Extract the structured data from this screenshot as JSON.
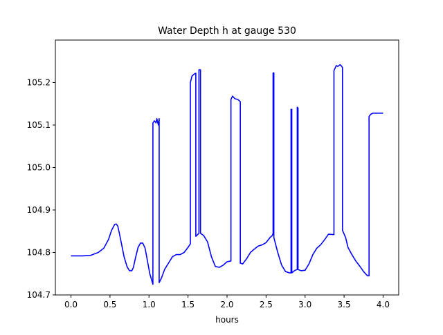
{
  "chart_data": {
    "type": "line",
    "title": "Water Depth h at gauge 530",
    "xlabel": "hours",
    "ylabel": "",
    "xlim": [
      -0.2,
      4.2
    ],
    "ylim": [
      104.7,
      105.3
    ],
    "xticks": [
      0.0,
      0.5,
      1.0,
      1.5,
      2.0,
      2.5,
      3.0,
      3.5,
      4.0
    ],
    "xtick_labels": [
      "0.0",
      "0.5",
      "1.0",
      "1.5",
      "2.0",
      "2.5",
      "3.0",
      "3.5",
      "4.0"
    ],
    "yticks": [
      104.7,
      104.8,
      104.9,
      105.0,
      105.1,
      105.2
    ],
    "ytick_labels": [
      "104.7",
      "104.8",
      "104.9",
      "105.0",
      "105.1",
      "105.2"
    ],
    "grid": false,
    "series": [
      {
        "color": "#0000ff",
        "x": [
          0.0,
          0.15,
          0.25,
          0.35,
          0.42,
          0.48,
          0.52,
          0.56,
          0.58,
          0.6,
          0.62,
          0.65,
          0.68,
          0.72,
          0.75,
          0.78,
          0.8,
          0.83,
          0.86,
          0.89,
          0.92,
          0.95,
          0.98,
          1.01,
          1.05,
          1.05,
          1.07,
          1.09,
          1.1,
          1.12,
          1.13,
          1.13,
          1.13,
          1.16,
          1.2,
          1.25,
          1.3,
          1.35,
          1.4,
          1.45,
          1.5,
          1.53,
          1.53,
          1.55,
          1.58,
          1.6,
          1.6,
          1.6,
          1.64,
          1.64,
          1.66,
          1.66,
          1.7,
          1.75,
          1.8,
          1.85,
          1.9,
          1.95,
          2.0,
          2.05,
          2.05,
          2.07,
          2.1,
          2.14,
          2.17,
          2.17,
          2.17,
          2.2,
          2.25,
          2.3,
          2.35,
          2.4,
          2.45,
          2.5,
          2.55,
          2.58,
          2.59,
          2.59,
          2.6,
          2.6,
          2.6,
          2.65,
          2.7,
          2.75,
          2.8,
          2.82,
          2.82,
          2.83,
          2.83,
          2.87,
          2.9,
          2.9,
          2.91,
          2.91,
          2.95,
          3.0,
          3.05,
          3.1,
          3.15,
          3.2,
          3.25,
          3.3,
          3.37,
          3.37,
          3.4,
          3.42,
          3.45,
          3.47,
          3.48,
          3.48,
          3.52,
          3.55,
          3.6,
          3.65,
          3.7,
          3.75,
          3.8,
          3.82,
          3.82,
          3.84,
          3.87,
          3.92,
          4.0
        ],
        "y": [
          104.792,
          104.792,
          104.793,
          104.8,
          104.81,
          104.83,
          104.852,
          104.866,
          104.867,
          104.862,
          104.845,
          104.818,
          104.79,
          104.766,
          104.757,
          104.757,
          104.765,
          104.79,
          104.812,
          104.822,
          104.822,
          104.81,
          104.78,
          104.75,
          104.725,
          105.105,
          105.11,
          105.105,
          105.115,
          105.1,
          105.115,
          104.729,
          104.729,
          104.74,
          104.76,
          104.775,
          104.79,
          104.795,
          104.795,
          104.8,
          104.812,
          104.82,
          105.2,
          105.215,
          105.22,
          105.222,
          104.838,
          104.838,
          104.845,
          105.23,
          105.23,
          104.845,
          104.84,
          104.825,
          104.79,
          104.767,
          104.765,
          104.77,
          104.778,
          104.78,
          105.16,
          105.168,
          105.162,
          105.16,
          105.155,
          104.775,
          104.775,
          104.773,
          104.785,
          104.8,
          104.808,
          104.815,
          104.818,
          104.823,
          104.835,
          104.84,
          104.845,
          105.222,
          105.223,
          104.835,
          104.835,
          104.8,
          104.77,
          104.755,
          104.752,
          104.752,
          105.137,
          105.137,
          104.752,
          104.758,
          104.76,
          105.142,
          105.14,
          104.76,
          104.757,
          104.758,
          104.773,
          104.795,
          104.81,
          104.818,
          104.83,
          104.843,
          104.842,
          105.228,
          105.24,
          105.238,
          105.242,
          105.238,
          105.235,
          104.852,
          104.835,
          104.812,
          104.795,
          104.78,
          104.768,
          104.755,
          104.745,
          104.745,
          105.12,
          105.125,
          105.128,
          105.128,
          105.128
        ]
      }
    ]
  }
}
